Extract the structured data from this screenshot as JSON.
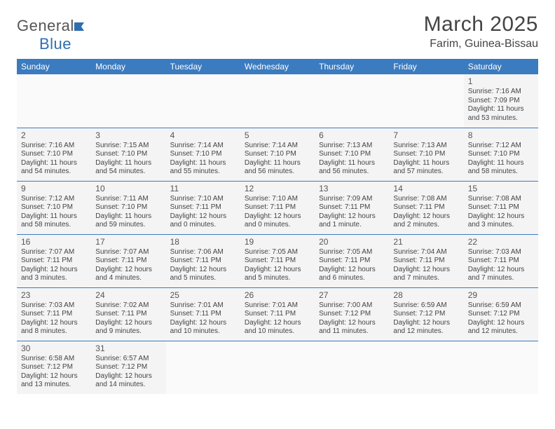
{
  "logo": {
    "general": "General",
    "blue": "Blue"
  },
  "title": "March 2025",
  "location": "Farim, Guinea-Bissau",
  "colors": {
    "header_bg": "#3b7bbf",
    "header_fg": "#ffffff",
    "cell_bg": "#f4f4f4",
    "border": "#3b7bbf",
    "text": "#444444"
  },
  "weekdays": [
    "Sunday",
    "Monday",
    "Tuesday",
    "Wednesday",
    "Thursday",
    "Friday",
    "Saturday"
  ],
  "weeks": [
    [
      null,
      null,
      null,
      null,
      null,
      null,
      {
        "d": "1",
        "sr": "Sunrise: 7:16 AM",
        "ss": "Sunset: 7:09 PM",
        "dl": "Daylight: 11 hours and 53 minutes."
      }
    ],
    [
      {
        "d": "2",
        "sr": "Sunrise: 7:16 AM",
        "ss": "Sunset: 7:10 PM",
        "dl": "Daylight: 11 hours and 54 minutes."
      },
      {
        "d": "3",
        "sr": "Sunrise: 7:15 AM",
        "ss": "Sunset: 7:10 PM",
        "dl": "Daylight: 11 hours and 54 minutes."
      },
      {
        "d": "4",
        "sr": "Sunrise: 7:14 AM",
        "ss": "Sunset: 7:10 PM",
        "dl": "Daylight: 11 hours and 55 minutes."
      },
      {
        "d": "5",
        "sr": "Sunrise: 7:14 AM",
        "ss": "Sunset: 7:10 PM",
        "dl": "Daylight: 11 hours and 56 minutes."
      },
      {
        "d": "6",
        "sr": "Sunrise: 7:13 AM",
        "ss": "Sunset: 7:10 PM",
        "dl": "Daylight: 11 hours and 56 minutes."
      },
      {
        "d": "7",
        "sr": "Sunrise: 7:13 AM",
        "ss": "Sunset: 7:10 PM",
        "dl": "Daylight: 11 hours and 57 minutes."
      },
      {
        "d": "8",
        "sr": "Sunrise: 7:12 AM",
        "ss": "Sunset: 7:10 PM",
        "dl": "Daylight: 11 hours and 58 minutes."
      }
    ],
    [
      {
        "d": "9",
        "sr": "Sunrise: 7:12 AM",
        "ss": "Sunset: 7:10 PM",
        "dl": "Daylight: 11 hours and 58 minutes."
      },
      {
        "d": "10",
        "sr": "Sunrise: 7:11 AM",
        "ss": "Sunset: 7:10 PM",
        "dl": "Daylight: 11 hours and 59 minutes."
      },
      {
        "d": "11",
        "sr": "Sunrise: 7:10 AM",
        "ss": "Sunset: 7:11 PM",
        "dl": "Daylight: 12 hours and 0 minutes."
      },
      {
        "d": "12",
        "sr": "Sunrise: 7:10 AM",
        "ss": "Sunset: 7:11 PM",
        "dl": "Daylight: 12 hours and 0 minutes."
      },
      {
        "d": "13",
        "sr": "Sunrise: 7:09 AM",
        "ss": "Sunset: 7:11 PM",
        "dl": "Daylight: 12 hours and 1 minute."
      },
      {
        "d": "14",
        "sr": "Sunrise: 7:08 AM",
        "ss": "Sunset: 7:11 PM",
        "dl": "Daylight: 12 hours and 2 minutes."
      },
      {
        "d": "15",
        "sr": "Sunrise: 7:08 AM",
        "ss": "Sunset: 7:11 PM",
        "dl": "Daylight: 12 hours and 3 minutes."
      }
    ],
    [
      {
        "d": "16",
        "sr": "Sunrise: 7:07 AM",
        "ss": "Sunset: 7:11 PM",
        "dl": "Daylight: 12 hours and 3 minutes."
      },
      {
        "d": "17",
        "sr": "Sunrise: 7:07 AM",
        "ss": "Sunset: 7:11 PM",
        "dl": "Daylight: 12 hours and 4 minutes."
      },
      {
        "d": "18",
        "sr": "Sunrise: 7:06 AM",
        "ss": "Sunset: 7:11 PM",
        "dl": "Daylight: 12 hours and 5 minutes."
      },
      {
        "d": "19",
        "sr": "Sunrise: 7:05 AM",
        "ss": "Sunset: 7:11 PM",
        "dl": "Daylight: 12 hours and 5 minutes."
      },
      {
        "d": "20",
        "sr": "Sunrise: 7:05 AM",
        "ss": "Sunset: 7:11 PM",
        "dl": "Daylight: 12 hours and 6 minutes."
      },
      {
        "d": "21",
        "sr": "Sunrise: 7:04 AM",
        "ss": "Sunset: 7:11 PM",
        "dl": "Daylight: 12 hours and 7 minutes."
      },
      {
        "d": "22",
        "sr": "Sunrise: 7:03 AM",
        "ss": "Sunset: 7:11 PM",
        "dl": "Daylight: 12 hours and 7 minutes."
      }
    ],
    [
      {
        "d": "23",
        "sr": "Sunrise: 7:03 AM",
        "ss": "Sunset: 7:11 PM",
        "dl": "Daylight: 12 hours and 8 minutes."
      },
      {
        "d": "24",
        "sr": "Sunrise: 7:02 AM",
        "ss": "Sunset: 7:11 PM",
        "dl": "Daylight: 12 hours and 9 minutes."
      },
      {
        "d": "25",
        "sr": "Sunrise: 7:01 AM",
        "ss": "Sunset: 7:11 PM",
        "dl": "Daylight: 12 hours and 10 minutes."
      },
      {
        "d": "26",
        "sr": "Sunrise: 7:01 AM",
        "ss": "Sunset: 7:11 PM",
        "dl": "Daylight: 12 hours and 10 minutes."
      },
      {
        "d": "27",
        "sr": "Sunrise: 7:00 AM",
        "ss": "Sunset: 7:12 PM",
        "dl": "Daylight: 12 hours and 11 minutes."
      },
      {
        "d": "28",
        "sr": "Sunrise: 6:59 AM",
        "ss": "Sunset: 7:12 PM",
        "dl": "Daylight: 12 hours and 12 minutes."
      },
      {
        "d": "29",
        "sr": "Sunrise: 6:59 AM",
        "ss": "Sunset: 7:12 PM",
        "dl": "Daylight: 12 hours and 12 minutes."
      }
    ],
    [
      {
        "d": "30",
        "sr": "Sunrise: 6:58 AM",
        "ss": "Sunset: 7:12 PM",
        "dl": "Daylight: 12 hours and 13 minutes."
      },
      {
        "d": "31",
        "sr": "Sunrise: 6:57 AM",
        "ss": "Sunset: 7:12 PM",
        "dl": "Daylight: 12 hours and 14 minutes."
      },
      null,
      null,
      null,
      null,
      null
    ]
  ]
}
